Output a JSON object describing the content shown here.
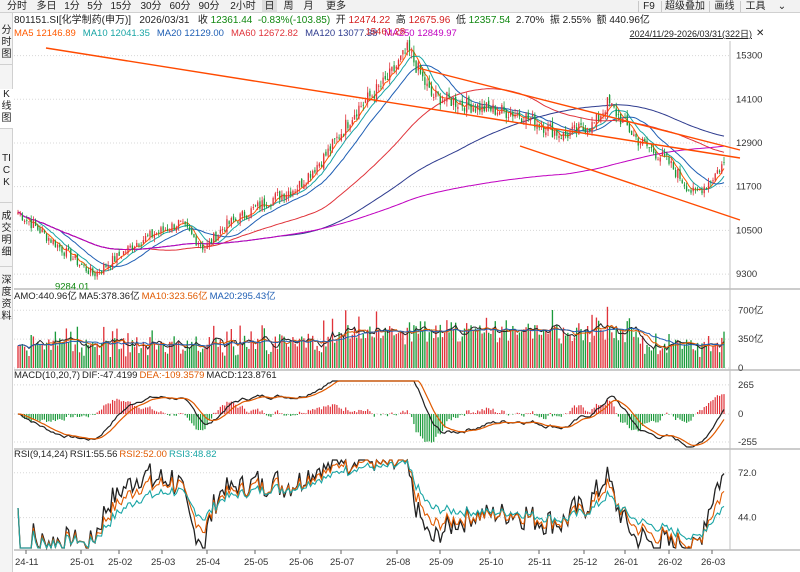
{
  "toolbar": {
    "left": [
      "分时",
      "多日",
      "1分",
      "5分",
      "15分",
      "30分",
      "60分",
      "90分",
      "2小时",
      "日",
      "周",
      "月",
      "更多"
    ],
    "active": "日",
    "right": [
      "F9",
      "超级叠加",
      "画线",
      "工具"
    ]
  },
  "sidetabs": [
    {
      "label": "分时图"
    },
    {
      "label": "K线图",
      "active": true
    },
    {
      "label": "TICK"
    },
    {
      "label": "成交明细"
    },
    {
      "label": "深度资料"
    }
  ],
  "quote": {
    "code_name": "801151.SI[化学制药(申万)]",
    "date": "2026/03/31",
    "close_label": "收",
    "close": "12361.44",
    "change": "-0.83%(-103.85)",
    "open_label": "开",
    "open": "12474.22",
    "high_label": "高",
    "high": "12675.96",
    "low_label": "低",
    "low": "12357.54",
    "change_pct_label": "",
    "change_pct": "2.70%",
    "amplitude_label": "振",
    "amplitude": "2.55%",
    "amount_label": "额",
    "amount": "440.96亿"
  },
  "ma_legend": [
    {
      "text": "MA5 12146.89",
      "color": "#ff5a00"
    },
    {
      "text": "MA10 12041.35",
      "color": "#19a5a5"
    },
    {
      "text": "MA20 12129.00",
      "color": "#1f5fb4"
    },
    {
      "text": "MA60 12672.82",
      "color": "#e0333a"
    },
    {
      "text": "MA120 13077.38",
      "color": "#2f3c8f"
    },
    {
      "text": "MA250 12849.97",
      "color": "#c000c0"
    }
  ],
  "range": "2024/11/29-2026/03/31(322日)",
  "range_close": "✕",
  "price_axis": {
    "ticks": [
      "15300",
      "14100",
      "12900",
      "11700",
      "10500",
      "9300"
    ]
  },
  "annotations": {
    "high": "15461.28",
    "low": "9284.01"
  },
  "volume_panel": {
    "label_parts": [
      {
        "text": "AMO:440.96亿",
        "color": "#222222"
      },
      {
        "text": "MA5:378.36亿",
        "color": "#222222"
      },
      {
        "text": "MA10:323.56亿",
        "color": "#e05a00"
      },
      {
        "text": "MA20:295.43亿",
        "color": "#1f5fb4"
      }
    ],
    "ticks": [
      "700亿",
      "350亿",
      "0"
    ]
  },
  "macd_panel": {
    "label_parts": [
      {
        "text": "MACD(10,20,7)",
        "color": "#222222"
      },
      {
        "text": "DIF:-47.4199",
        "color": "#222222"
      },
      {
        "text": "DEA:-109.3579",
        "color": "#e05a00"
      },
      {
        "text": "MACD:123.8761",
        "color": "#222222"
      }
    ],
    "ticks": [
      "265",
      "0",
      "-255"
    ]
  },
  "rsi_panel": {
    "label_parts": [
      {
        "text": "RSI(9,14,24)",
        "color": "#222222"
      },
      {
        "text": "RSI1:55.56",
        "color": "#222222"
      },
      {
        "text": "RSI2:52.00",
        "color": "#e05a00"
      },
      {
        "text": "RSI3:48.82",
        "color": "#19a5a5"
      }
    ],
    "ticks": [
      "72.0",
      "44.0"
    ]
  },
  "x_axis": {
    "ticks": [
      "24-11",
      "25-01",
      "25-02",
      "25-03",
      "25-04",
      "25-05",
      "25-06",
      "25-07",
      "25-08",
      "25-09",
      "25-10",
      "25-11",
      "25-12",
      "26-01",
      "26-02",
      "26-03"
    ]
  },
  "colors": {
    "up": "#e0333a",
    "down": "#1a9a3a",
    "trendline": "#ff4a00",
    "grid": "#d8d8d8"
  },
  "chart_data": {
    "type": "candlestick",
    "period": "daily",
    "price_range": [
      9000,
      15700
    ],
    "anchor_closes": [
      {
        "date": "2024-11-29",
        "close": 11000
      },
      {
        "date": "2025-01-10",
        "close": 9600
      },
      {
        "date": "2025-01-20",
        "close": 9284
      },
      {
        "date": "2025-02-20",
        "close": 10200
      },
      {
        "date": "2025-03-20",
        "close": 10700
      },
      {
        "date": "2025-04-07",
        "close": 10000
      },
      {
        "date": "2025-04-20",
        "close": 10600
      },
      {
        "date": "2025-05-20",
        "close": 11300
      },
      {
        "date": "2025-06-10",
        "close": 11700
      },
      {
        "date": "2025-06-30",
        "close": 12600
      },
      {
        "date": "2025-07-20",
        "close": 13800
      },
      {
        "date": "2025-08-10",
        "close": 14600
      },
      {
        "date": "2025-08-25",
        "close": 15461
      },
      {
        "date": "2025-09-10",
        "close": 14200
      },
      {
        "date": "2025-10-10",
        "close": 13900
      },
      {
        "date": "2025-11-10",
        "close": 13700
      },
      {
        "date": "2025-12-10",
        "close": 13100
      },
      {
        "date": "2025-12-31",
        "close": 13400
      },
      {
        "date": "2026-01-10",
        "close": 14000
      },
      {
        "date": "2026-01-30",
        "close": 13000
      },
      {
        "date": "2026-02-20",
        "close": 12400
      },
      {
        "date": "2026-03-10",
        "close": 11500
      },
      {
        "date": "2026-03-20",
        "close": 11800
      },
      {
        "date": "2026-03-31",
        "close": 12361
      }
    ],
    "volume_range_yi": [
      0,
      800
    ],
    "macd_range": [
      -300,
      300
    ],
    "rsi_range": [
      25,
      80
    ]
  }
}
